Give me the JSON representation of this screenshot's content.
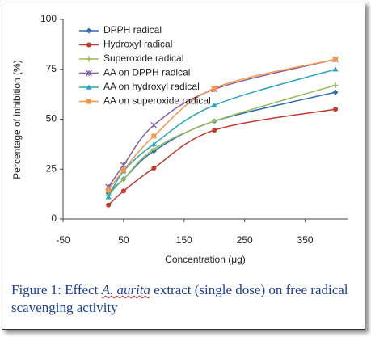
{
  "chart_data": {
    "type": "line",
    "xlabel": "Concentration (μg)",
    "ylabel": "Percentage of inhibition (%)",
    "x": [
      25,
      50,
      100,
      200,
      400
    ],
    "xlim": [
      -50,
      420
    ],
    "xticks": [
      -50,
      50,
      150,
      250,
      350
    ],
    "ylim": [
      0,
      100
    ],
    "yticks": [
      0,
      25,
      50,
      75,
      100
    ],
    "legend": "upper left",
    "series": [
      {
        "name": "DPPH radical",
        "color": "#2e6fb5",
        "marker": "diamond",
        "values": [
          13,
          20,
          34,
          49,
          63.5
        ]
      },
      {
        "name": "Hydroxyl radical",
        "color": "#c0392b",
        "marker": "circle",
        "values": [
          7,
          14,
          25.5,
          44.5,
          55
        ]
      },
      {
        "name": "Superoxide radical",
        "color": "#9bbb59",
        "marker": "cross",
        "values": [
          12,
          20,
          35,
          49,
          67
        ]
      },
      {
        "name": "AA on DPPH radical",
        "color": "#7f5fa8",
        "marker": "star",
        "values": [
          16,
          27,
          47,
          65,
          80
        ]
      },
      {
        "name": "AA on hydroxyl radical",
        "color": "#29a4bf",
        "marker": "triangle",
        "values": [
          11,
          24,
          37.5,
          57,
          75
        ]
      },
      {
        "name": "AA on superoxide radical",
        "color": "#f79646",
        "marker": "square",
        "values": [
          14.5,
          24.5,
          41.5,
          65.5,
          80
        ]
      }
    ]
  },
  "caption": {
    "prefix": "Figure 1: Effect ",
    "italic": "A. aurita",
    "suffix": " extract (single dose) on free radical scavenging activity"
  }
}
